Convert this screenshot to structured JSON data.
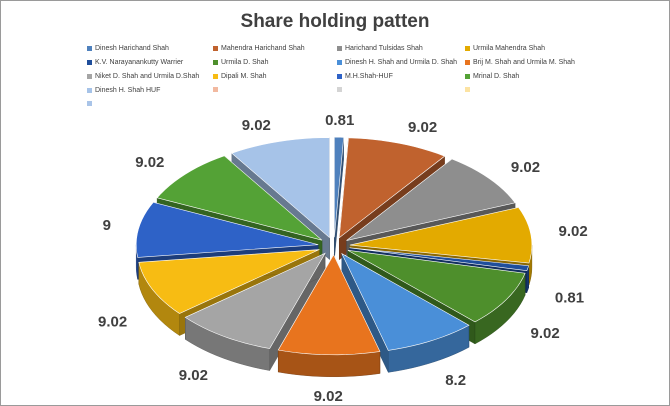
{
  "chart_data": {
    "type": "pie",
    "style": "3d-exploded",
    "title": "Share holding patten",
    "legend_position": "top",
    "series": [
      {
        "name": "Dinesh Harichand Shah",
        "value": 0.81,
        "color": "#4f81bd"
      },
      {
        "name": "Mahendra Harichand Shah",
        "value": 9.02,
        "color": "#c0622e"
      },
      {
        "name": "Harichand Tulsidas Shah",
        "value": 9.02,
        "color": "#8e8e8e"
      },
      {
        "name": "Urmila Mahendra Shah",
        "value": 9.02,
        "color": "#e3aa00"
      },
      {
        "name": "K.V. Narayanankutty Warrier",
        "value": 0.81,
        "color": "#1f4e9b"
      },
      {
        "name": "Urmila D. Shah",
        "value": 9.02,
        "color": "#4e8f2c"
      },
      {
        "name": "Dinesh H. Shah and Urmila D. Shah",
        "value": 8.2,
        "color": "#4a8fd8"
      },
      {
        "name": "Brij M. Shah and Urmila M. Shah",
        "value": 9.02,
        "color": "#e8741e"
      },
      {
        "name": "Niket D. Shah and Urmila D.Shah",
        "value": 9.02,
        "color": "#a5a5a5"
      },
      {
        "name": "Dipali M. Shah",
        "value": 9.02,
        "color": "#f7bc13"
      },
      {
        "name": "M.H.Shah-HUF",
        "value": 9,
        "color": "#2e62c7"
      },
      {
        "name": "Mrinal D. Shah",
        "value": 9.02,
        "color": "#54a236"
      },
      {
        "name": "Dinesh H. Shah HUF",
        "value": 9.02,
        "color": "#a6c3e8"
      }
    ],
    "legend_extra_swatches": [
      "#f2b9a0",
      "#d4d4d4",
      "#fce3a2",
      "#a9c4e8"
    ]
  }
}
